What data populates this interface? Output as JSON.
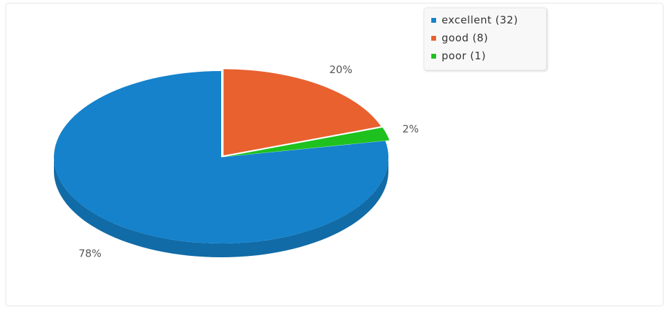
{
  "chart_data": {
    "type": "pie",
    "style": "3d",
    "slices": [
      {
        "category": "excellent",
        "value": 32,
        "legend_label": "excellent (32)",
        "percent_label": "78%",
        "color": "#1582cb"
      },
      {
        "category": "good",
        "value": 8,
        "legend_label": "good (8)",
        "percent_label": "20%",
        "color": "#e8612f"
      },
      {
        "category": "poor",
        "value": 1,
        "legend_label": "poor (1)",
        "percent_label": "2%",
        "color": "#1fc11f"
      }
    ],
    "legend": {
      "placement": "top-right"
    }
  }
}
